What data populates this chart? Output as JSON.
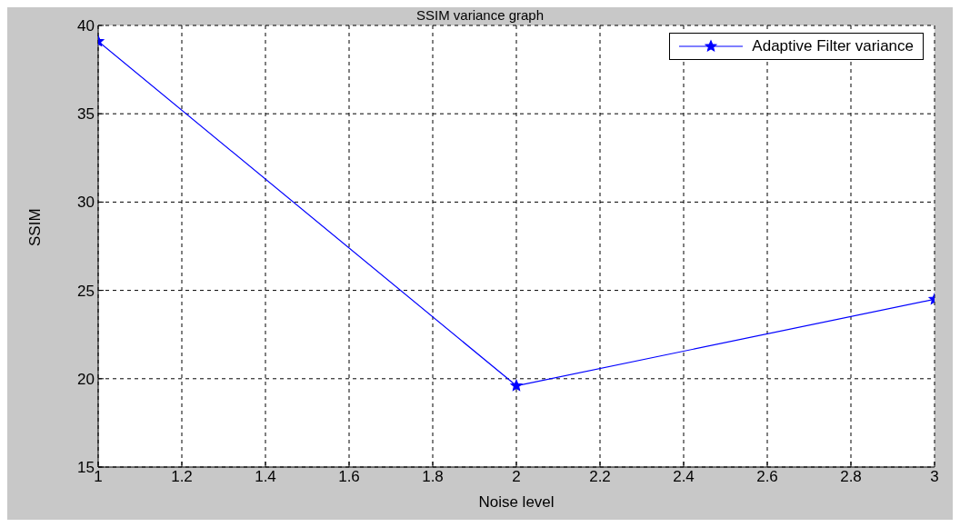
{
  "chart_data": {
    "type": "line",
    "title": "SSIM variance graph",
    "xlabel": "Noise level",
    "ylabel": "SSIM",
    "x": [
      1,
      2,
      3
    ],
    "series": [
      {
        "name": "Adaptive Filter variance",
        "color": "#0000ff",
        "values": [
          39.1,
          19.6,
          24.5
        ]
      }
    ],
    "xlim": [
      1,
      3
    ],
    "xticks": [
      1,
      1.2,
      1.4,
      1.6,
      1.8,
      2,
      2.2,
      2.4,
      2.6,
      2.8,
      3
    ],
    "ylim": [
      15,
      40
    ],
    "yticks": [
      15,
      20,
      25,
      30,
      35,
      40
    ],
    "grid": true,
    "legend": "top right",
    "marker": "star",
    "line_style": "solid"
  }
}
